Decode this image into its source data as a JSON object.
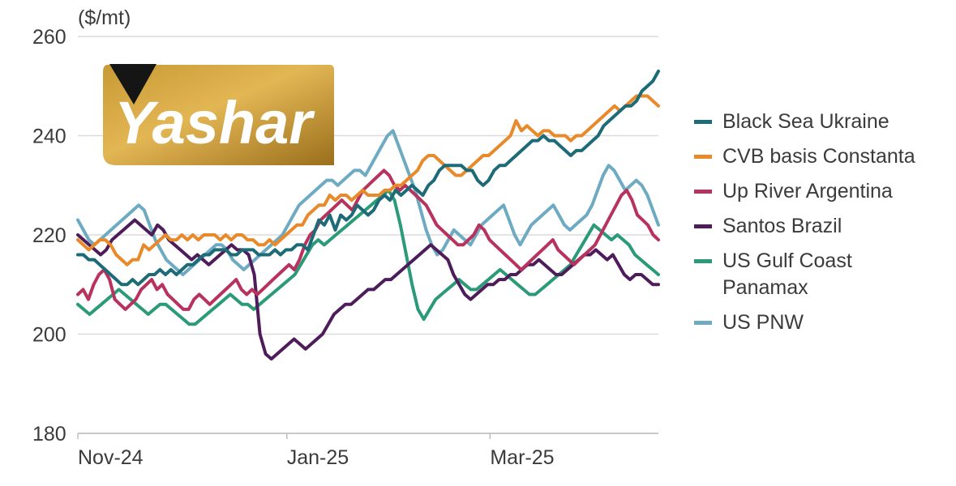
{
  "chart_data": {
    "type": "line",
    "ylabel": "($/mt)",
    "ylim": [
      180,
      260
    ],
    "yticks": [
      180,
      200,
      220,
      240,
      260
    ],
    "xticks": [
      "Nov-24",
      "Jan-25",
      "Mar-25"
    ],
    "grid": true,
    "legend_position": "right",
    "series": [
      {
        "name": "Black Sea Ukraine",
        "color": "#1e6b78",
        "values": [
          216,
          216,
          215,
          215,
          214,
          213,
          212,
          211,
          210,
          210,
          211,
          210,
          211,
          212,
          212,
          213,
          212,
          213,
          212,
          213,
          214,
          214,
          215,
          216,
          216,
          217,
          217,
          217,
          216,
          216,
          217,
          217,
          217,
          216,
          216,
          216,
          217,
          216,
          217,
          217,
          218,
          218,
          217,
          220,
          223,
          222,
          224,
          221,
          224,
          223,
          224,
          226,
          225,
          224,
          225,
          227,
          228,
          227,
          229,
          228,
          229,
          230,
          229,
          228,
          230,
          231,
          233,
          234,
          234,
          234,
          234,
          233,
          233,
          231,
          230,
          231,
          233,
          234,
          234,
          235,
          236,
          237,
          238,
          239,
          239,
          240,
          239,
          239,
          238,
          237,
          236,
          237,
          237,
          238,
          239,
          240,
          242,
          243,
          244,
          245,
          246,
          246,
          247,
          249,
          250,
          251,
          253
        ]
      },
      {
        "name": "CVB basis Constanta",
        "color": "#e8892a",
        "values": [
          219,
          218,
          217,
          218,
          219,
          219,
          218,
          216,
          215,
          214,
          215,
          215,
          218,
          217,
          218,
          219,
          220,
          219,
          219,
          220,
          219,
          220,
          219,
          220,
          220,
          220,
          219,
          220,
          219,
          220,
          220,
          219,
          219,
          218,
          218,
          219,
          218,
          219,
          220,
          221,
          222,
          222,
          224,
          225,
          226,
          226,
          228,
          227,
          228,
          228,
          227,
          228,
          229,
          228,
          228,
          228,
          229,
          229,
          230,
          230,
          231,
          232,
          233,
          235,
          236,
          236,
          235,
          234,
          233,
          232,
          232,
          233,
          234,
          235,
          236,
          236,
          237,
          238,
          239,
          240,
          243,
          241,
          242,
          241,
          240,
          241,
          241,
          240,
          240,
          240,
          239,
          240,
          240,
          241,
          242,
          243,
          244,
          245,
          246,
          245,
          246,
          247,
          248,
          248,
          248,
          247,
          246
        ]
      },
      {
        "name": "Up River Argentina",
        "color": "#b8325e",
        "values": [
          208,
          209,
          207,
          210,
          212,
          213,
          211,
          207,
          206,
          205,
          206,
          207,
          209,
          210,
          211,
          209,
          210,
          208,
          207,
          206,
          205,
          205,
          207,
          208,
          207,
          206,
          207,
          208,
          209,
          210,
          211,
          209,
          208,
          209,
          208,
          209,
          210,
          211,
          212,
          213,
          214,
          213,
          215,
          218,
          220,
          221,
          223,
          224,
          225,
          226,
          227,
          226,
          225,
          227,
          229,
          230,
          231,
          232,
          233,
          232,
          230,
          229,
          230,
          229,
          228,
          227,
          226,
          224,
          222,
          221,
          220,
          219,
          218,
          218,
          219,
          220,
          222,
          221,
          219,
          218,
          217,
          216,
          215,
          214,
          213,
          214,
          215,
          216,
          217,
          218,
          219,
          217,
          216,
          215,
          214,
          215,
          216,
          217,
          218,
          220,
          222,
          224,
          226,
          228,
          229,
          227,
          224,
          223,
          222,
          220,
          219
        ]
      },
      {
        "name": "Santos Brazil",
        "color": "#4e1c5a",
        "values": [
          220,
          219,
          218,
          217,
          216,
          217,
          219,
          220,
          221,
          222,
          223,
          222,
          221,
          220,
          222,
          221,
          219,
          218,
          217,
          216,
          215,
          216,
          215,
          214,
          215,
          216,
          217,
          218,
          217,
          217,
          216,
          212,
          200,
          196,
          195,
          196,
          197,
          198,
          199,
          198,
          197,
          198,
          199,
          200,
          202,
          204,
          205,
          206,
          206,
          207,
          208,
          209,
          209,
          210,
          211,
          211,
          212,
          213,
          214,
          215,
          216,
          217,
          218,
          217,
          216,
          215,
          212,
          210,
          208,
          207,
          208,
          209,
          210,
          210,
          211,
          211,
          212,
          212,
          213,
          214,
          214,
          215,
          214,
          213,
          212,
          212,
          213,
          214,
          215,
          216,
          216,
          217,
          216,
          215,
          216,
          214,
          212,
          211,
          212,
          212,
          211,
          210,
          210
        ]
      },
      {
        "name": "US Gulf Coast Panamax",
        "color": "#2b9a78",
        "values": [
          206,
          205,
          204,
          205,
          206,
          207,
          208,
          209,
          208,
          207,
          206,
          205,
          204,
          205,
          206,
          206,
          205,
          204,
          203,
          202,
          202,
          203,
          204,
          205,
          206,
          207,
          208,
          207,
          206,
          206,
          205,
          206,
          207,
          208,
          209,
          210,
          211,
          212,
          214,
          216,
          218,
          219,
          218,
          219,
          220,
          221,
          222,
          223,
          224,
          225,
          226,
          227,
          228,
          229,
          227,
          222,
          216,
          210,
          205,
          203,
          205,
          207,
          208,
          209,
          210,
          211,
          210,
          209,
          209,
          210,
          211,
          212,
          213,
          212,
          211,
          210,
          209,
          208,
          208,
          209,
          210,
          211,
          212,
          213,
          214,
          216,
          218,
          220,
          222,
          221,
          220,
          219,
          220,
          219,
          218,
          216,
          215,
          214,
          213,
          212
        ]
      },
      {
        "name": "US PNW",
        "color": "#6eabc2",
        "values": [
          223,
          221,
          219,
          218,
          219,
          220,
          221,
          222,
          223,
          224,
          225,
          226,
          225,
          222,
          219,
          217,
          215,
          214,
          213,
          212,
          213,
          214,
          215,
          216,
          217,
          218,
          218,
          217,
          215,
          214,
          213,
          214,
          215,
          216,
          217,
          218,
          219,
          220,
          222,
          224,
          226,
          227,
          228,
          229,
          230,
          231,
          231,
          230,
          231,
          232,
          233,
          233,
          232,
          234,
          236,
          238,
          240,
          241,
          238,
          235,
          232,
          229,
          225,
          221,
          218,
          216,
          217,
          219,
          221,
          220,
          219,
          218,
          220,
          222,
          223,
          224,
          225,
          226,
          223,
          220,
          218,
          220,
          222,
          223,
          224,
          225,
          226,
          224,
          222,
          221,
          222,
          223,
          224,
          226,
          229,
          232,
          234,
          233,
          231,
          229,
          230,
          231,
          230,
          228,
          225,
          222
        ]
      }
    ]
  },
  "logo": {
    "text": "Yashar"
  }
}
